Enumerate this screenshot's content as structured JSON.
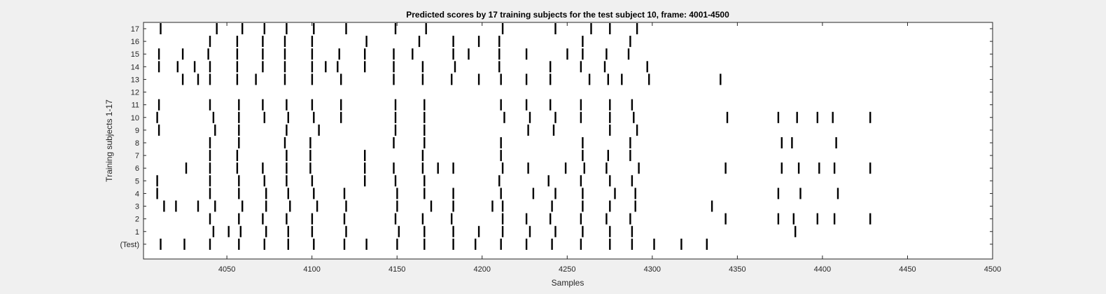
{
  "chart_data": {
    "type": "raster",
    "title": "Predicted scores by 17 training subjects for the test subject 10, frame: 4001-4500",
    "xlabel": "Samples",
    "ylabel": "Training subjects 1-17",
    "xlim": [
      4001,
      4500
    ],
    "x_ticks": [
      4050,
      4100,
      4150,
      4200,
      4250,
      4300,
      4350,
      4400,
      4450,
      4500
    ],
    "rows": [
      {
        "label": "17",
        "events": [
          4011,
          4044,
          4059,
          4072,
          4085,
          4101,
          4120,
          4149,
          4167,
          4212,
          4243,
          4264,
          4275,
          4291
        ]
      },
      {
        "label": "16",
        "events": [
          4040,
          4056,
          4071,
          4084,
          4100,
          4132,
          4163,
          4183,
          4198,
          4210,
          4259,
          4287
        ]
      },
      {
        "label": "15",
        "events": [
          4010,
          4024,
          4039,
          4056,
          4071,
          4084,
          4100,
          4116,
          4131,
          4148,
          4159,
          4183,
          4192,
          4210,
          4226,
          4250,
          4259,
          4273,
          4286
        ]
      },
      {
        "label": "14",
        "events": [
          4010,
          4021,
          4031,
          4040,
          4056,
          4071,
          4084,
          4100,
          4108,
          4115,
          4131,
          4148,
          4165,
          4184,
          4210,
          4240,
          4258,
          4272,
          4297
        ]
      },
      {
        "label": "13",
        "events": [
          4024,
          4033,
          4040,
          4056,
          4067,
          4084,
          4100,
          4117,
          4148,
          4165,
          4182,
          4198,
          4211,
          4226,
          4240,
          4263,
          4274,
          4282,
          4298,
          4340
        ]
      },
      {
        "label": "12",
        "events": []
      },
      {
        "label": "11",
        "events": [
          4010,
          4040,
          4057,
          4071,
          4085,
          4100,
          4117,
          4149,
          4166,
          4211,
          4226,
          4240,
          4258,
          4275,
          4288
        ]
      },
      {
        "label": "10",
        "events": [
          4009,
          4042,
          4057,
          4072,
          4086,
          4101,
          4117,
          4149,
          4166,
          4213,
          4228,
          4243,
          4258,
          4275,
          4289,
          4344,
          4374,
          4385,
          4397,
          4406,
          4428
        ]
      },
      {
        "label": "9",
        "events": [
          4010,
          4043,
          4057,
          4085,
          4104,
          4149,
          4166,
          4227,
          4242,
          4275,
          4291
        ]
      },
      {
        "label": "8",
        "events": [
          4040,
          4057,
          4084,
          4099,
          4148,
          4166,
          4211,
          4259,
          4287,
          4376,
          4382,
          4408
        ]
      },
      {
        "label": "7",
        "events": [
          4040,
          4056,
          4085,
          4099,
          4131,
          4165,
          4211,
          4259,
          4274,
          4287
        ]
      },
      {
        "label": "6",
        "events": [
          4026,
          4040,
          4056,
          4071,
          4085,
          4099,
          4131,
          4148,
          4165,
          4174,
          4183,
          4212,
          4227,
          4249,
          4260,
          4273,
          4292,
          4343,
          4376,
          4386,
          4398,
          4407,
          4428
        ]
      },
      {
        "label": "5",
        "events": [
          4009,
          4040,
          4057,
          4072,
          4085,
          4100,
          4131,
          4149,
          4166,
          4210,
          4239,
          4258,
          4275,
          4288
        ]
      },
      {
        "label": "4",
        "events": [
          4009,
          4040,
          4057,
          4073,
          4086,
          4101,
          4119,
          4150,
          4166,
          4183,
          4211,
          4230,
          4243,
          4259,
          4278,
          4290,
          4374,
          4387,
          4409
        ]
      },
      {
        "label": "3",
        "events": [
          4013,
          4020,
          4033,
          4043,
          4059,
          4073,
          4087,
          4103,
          4120,
          4150,
          4170,
          4183,
          4206,
          4212,
          4241,
          4259,
          4275,
          4290,
          4335
        ]
      },
      {
        "label": "2",
        "events": [
          4040,
          4057,
          4071,
          4085,
          4100,
          4119,
          4149,
          4165,
          4182,
          4212,
          4226,
          4240,
          4258,
          4273,
          4287,
          4343,
          4374,
          4383,
          4397,
          4407,
          4428
        ]
      },
      {
        "label": "1",
        "events": [
          4042,
          4051,
          4058,
          4073,
          4086,
          4100,
          4120,
          4151,
          4166,
          4183,
          4198,
          4212,
          4228,
          4243,
          4259,
          4275,
          4288,
          4384
        ]
      },
      {
        "label": "(Test)",
        "events": [
          4011,
          4025,
          4040,
          4057,
          4072,
          4086,
          4101,
          4119,
          4132,
          4150,
          4166,
          4183,
          4196,
          4211,
          4226,
          4241,
          4258,
          4275,
          4288,
          4301,
          4317,
          4332
        ]
      }
    ],
    "colors": {
      "background": "#f0f0f0",
      "axes": "#ffffff",
      "event": "#000000",
      "tick_text": "#262626"
    }
  }
}
